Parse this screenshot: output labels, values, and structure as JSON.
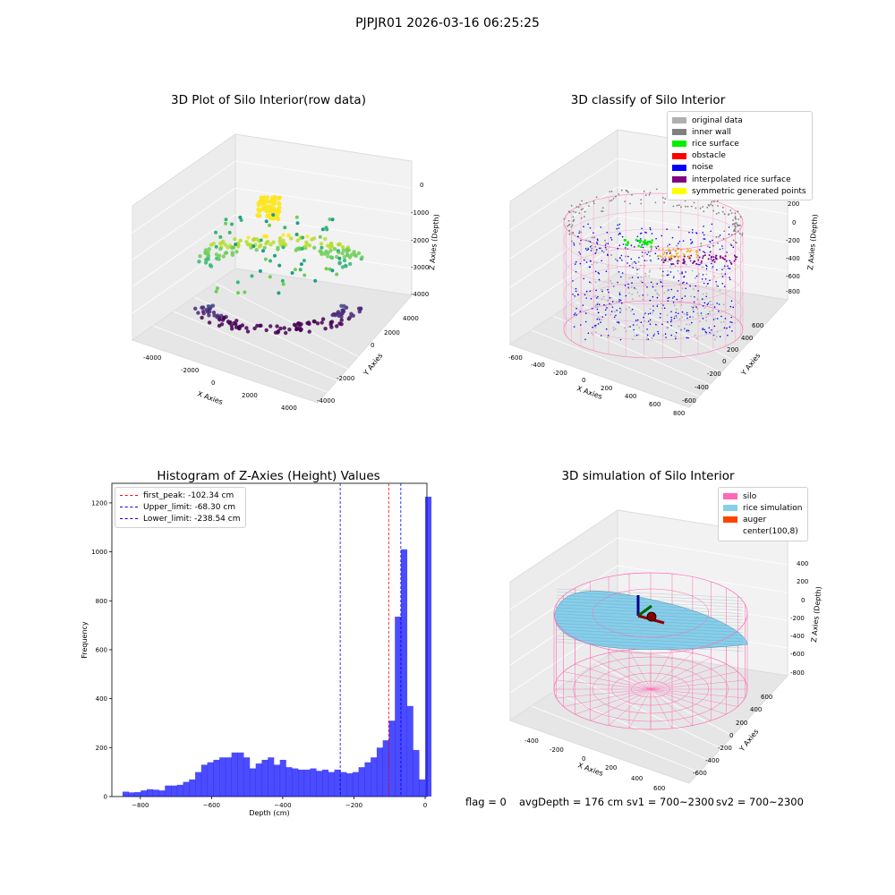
{
  "figure_title": "PJPJR01 2026-03-16 06:25:25",
  "footer": {
    "flag": "flag = 0",
    "avg_depth": "avgDepth = 176 cm",
    "sv1": "sv1 = 700~2300",
    "sv2": "sv2 = 700~2300"
  },
  "colors": {
    "original": "#b0b0b0",
    "inner_wall": "#808080",
    "rice_surface": "#00ee00",
    "obstacle": "#ff0000",
    "noise": "#0000ff",
    "interpolated": "#800080",
    "symmetric": "#ffff00",
    "silo": "#ff69b4",
    "rice_sim": "#87ceeb",
    "auger": "#ff4500",
    "hist_bar": "#0000ff",
    "peak_line": "#ff0000",
    "limit_line": "#0000ff"
  },
  "chart_data": [
    {
      "type": "scatter",
      "title": "3D Plot of Silo Interior(row data)",
      "xlabel": "X Axies",
      "ylabel": "Y Axies",
      "zlabel": "Z Axies (Depth)",
      "x_ticks": [
        "-4000",
        "-2000",
        "0",
        "2000",
        "4000"
      ],
      "y_ticks": [
        "-4000",
        "-2000",
        "0",
        "2000",
        "4000"
      ],
      "z_ticks": [
        "0",
        "-1000",
        "-2000",
        "-3000",
        "-4000"
      ],
      "colormap": "viridis"
    },
    {
      "type": "scatter",
      "title": "3D classify of Silo Interior",
      "xlabel": "X Axies",
      "ylabel": "Y Axies",
      "zlabel": "Z Axies (Depth)",
      "x_ticks": [
        "-600",
        "-400",
        "-200",
        "0",
        "200",
        "400",
        "600",
        "800"
      ],
      "y_ticks": [
        "600",
        "400",
        "200",
        "0",
        "-200",
        "-400",
        "-600"
      ],
      "z_ticks": [
        "200",
        "0",
        "-200",
        "-400",
        "-600",
        "-800"
      ],
      "legend": [
        "original data",
        "inner wall",
        "rice surface",
        "obstacle",
        "noise",
        "interpolated rice surface",
        "symmetric generated points"
      ]
    },
    {
      "type": "bar",
      "title": "Histogram of Z-Axies (Height) Values",
      "xlabel": "Depth (cm)",
      "ylabel": "Frequency",
      "xlim": [
        -880,
        5
      ],
      "ylim": [
        0,
        1280
      ],
      "x_ticks": [
        -800,
        -600,
        -400,
        -200,
        0
      ],
      "y_ticks": [
        0,
        200,
        400,
        600,
        800,
        1000,
        1200
      ],
      "bin_start": -850,
      "bin_width": 17,
      "values": [
        20,
        17,
        18,
        25,
        30,
        28,
        25,
        45,
        45,
        48,
        60,
        70,
        100,
        130,
        140,
        150,
        160,
        160,
        180,
        180,
        160,
        115,
        135,
        150,
        160,
        130,
        150,
        120,
        115,
        110,
        110,
        115,
        105,
        110,
        100,
        110,
        100,
        95,
        100,
        120,
        140,
        160,
        200,
        230,
        310,
        735,
        1010,
        370,
        190,
        70,
        1225
      ],
      "lines": [
        {
          "label": "first_peak: -102.34 cm",
          "value": -102.34,
          "style": "red"
        },
        {
          "label": "Upper_limit: -68.30 cm",
          "value": -68.3,
          "style": "blue"
        },
        {
          "label": "Lower_limit: -238.54 cm",
          "value": -238.54,
          "style": "blue"
        }
      ]
    },
    {
      "type": "surface",
      "title": "3D simulation of Silo Interior",
      "xlabel": "X Axies",
      "ylabel": "Y Axies",
      "zlabel": "Z Axies (Depth)",
      "x_ticks": [
        "-400",
        "-200",
        "0",
        "200",
        "400",
        "600"
      ],
      "y_ticks": [
        "600",
        "400",
        "200",
        "0",
        "-200",
        "-400",
        "-600"
      ],
      "z_ticks": [
        "400",
        "200",
        "0",
        "-200",
        "-400",
        "-600",
        "-800"
      ],
      "legend": [
        "silo",
        "rice simulation",
        "auger",
        "center(100,8)"
      ]
    }
  ]
}
